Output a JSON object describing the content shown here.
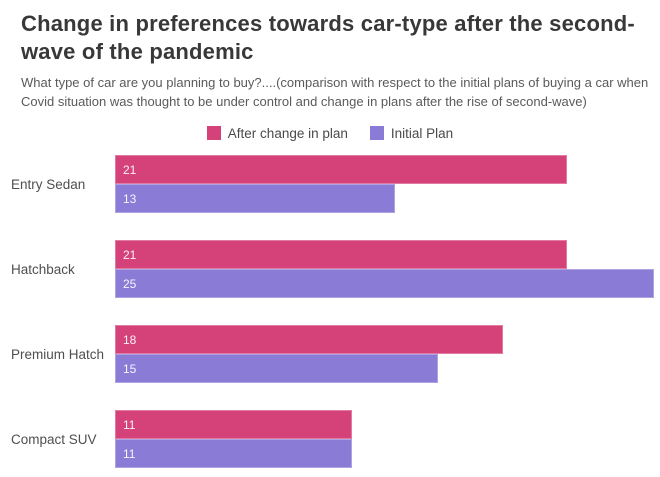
{
  "header": {
    "title": "Change in preferences towards car-type after the second-wave of the pandemic",
    "subtitle": "What type of car are you planning to buy?....(comparison with respect to the initial plans of buying a car when Covid situation was thought to be under control and change in plans after the rise of second-wave)"
  },
  "colors": {
    "after_change": "#d5427a",
    "initial_plan": "#8a7cd6"
  },
  "chart_data": {
    "type": "bar",
    "orientation": "horizontal",
    "title": "Change in preferences towards car-type after the second-wave of the pandemic",
    "categories": [
      "Entry Sedan",
      "Hatchback",
      "Premium Hatch",
      "Compact SUV"
    ],
    "series": [
      {
        "name": "After change in plan",
        "color": "#d5427a",
        "values": [
          21,
          21,
          18,
          11
        ]
      },
      {
        "name": "Initial Plan",
        "color": "#8a7cd6",
        "values": [
          13,
          25,
          15,
          11
        ]
      }
    ],
    "xlim": [
      0,
      25.3
    ],
    "value_labels": true,
    "grid": false,
    "legend_position": "top-center"
  }
}
